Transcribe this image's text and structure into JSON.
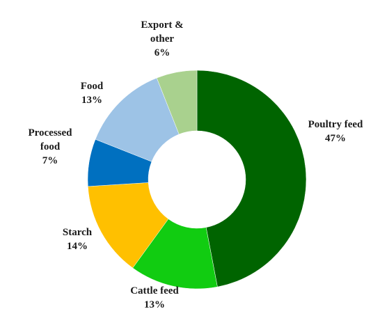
{
  "chart_data": {
    "type": "pie",
    "variant": "donut",
    "slices": [
      {
        "name": "Poultry feed",
        "value": 47,
        "label": "47%",
        "color": "#006400"
      },
      {
        "name": "Cattle feed",
        "value": 13,
        "label": "13%",
        "color": "#11CC11"
      },
      {
        "name": "Starch",
        "value": 14,
        "label": "14%",
        "color": "#FFC000"
      },
      {
        "name": "Processed food",
        "value": 7,
        "label": "7%",
        "color": "#0070C0"
      },
      {
        "name": "Food",
        "value": 13,
        "label": "13%",
        "color": "#9DC3E6"
      },
      {
        "name": "Export & other",
        "value": 6,
        "label": "6%",
        "color": "#A9D18E"
      }
    ],
    "start": "12 o'clock",
    "direction": "clockwise",
    "legend": "none",
    "labels": "outside"
  }
}
